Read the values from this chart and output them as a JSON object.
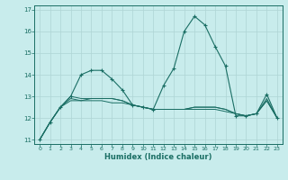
{
  "xlabel": "Humidex (Indice chaleur)",
  "bg_color": "#c8ecec",
  "grid_color": "#aed4d4",
  "line_color": "#1a6e64",
  "xlim": [
    -0.5,
    23.5
  ],
  "ylim": [
    10.8,
    17.2
  ],
  "yticks": [
    11,
    12,
    13,
    14,
    15,
    16,
    17
  ],
  "xticks": [
    0,
    1,
    2,
    3,
    4,
    5,
    6,
    7,
    8,
    9,
    10,
    11,
    12,
    13,
    14,
    15,
    16,
    17,
    18,
    19,
    20,
    21,
    22,
    23
  ],
  "series1": [
    11.0,
    11.8,
    12.5,
    13.0,
    14.0,
    14.2,
    14.2,
    13.8,
    13.3,
    12.6,
    12.5,
    12.4,
    13.5,
    14.3,
    16.0,
    16.7,
    16.3,
    15.3,
    14.4,
    12.1,
    12.1,
    12.2,
    13.1,
    12.0
  ],
  "series2": [
    11.0,
    11.8,
    12.5,
    12.9,
    12.8,
    12.9,
    12.9,
    12.9,
    12.8,
    12.6,
    12.5,
    12.4,
    12.4,
    12.4,
    12.4,
    12.5,
    12.5,
    12.5,
    12.4,
    12.2,
    12.1,
    12.2,
    12.8,
    12.0
  ],
  "series3": [
    11.0,
    11.8,
    12.5,
    12.8,
    12.8,
    12.8,
    12.8,
    12.7,
    12.7,
    12.6,
    12.5,
    12.4,
    12.4,
    12.4,
    12.4,
    12.4,
    12.4,
    12.4,
    12.3,
    12.2,
    12.1,
    12.2,
    12.8,
    12.0
  ],
  "series4": [
    11.0,
    11.8,
    12.5,
    13.0,
    12.9,
    12.9,
    12.9,
    12.9,
    12.8,
    12.6,
    12.5,
    12.4,
    12.4,
    12.4,
    12.4,
    12.5,
    12.5,
    12.5,
    12.4,
    12.2,
    12.1,
    12.2,
    12.9,
    12.0
  ]
}
